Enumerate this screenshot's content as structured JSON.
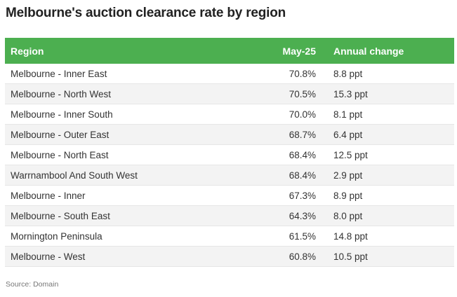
{
  "title": "Melbourne's auction clearance rate by region",
  "source": "Source: Domain",
  "colors": {
    "header_bg": "#4caf50",
    "header_text": "#ffffff",
    "row_alt_bg": "#f3f3f3"
  },
  "chart_data": {
    "type": "table",
    "title": "Melbourne's auction clearance rate by region",
    "columns": [
      "Region",
      "May-25",
      "Annual change"
    ],
    "rows": [
      [
        "Melbourne - Inner East",
        "70.8%",
        "8.8 ppt"
      ],
      [
        "Melbourne - North West",
        "70.5%",
        "15.3 ppt"
      ],
      [
        "Melbourne - Inner South",
        "70.0%",
        "8.1 ppt"
      ],
      [
        "Melbourne - Outer East",
        "68.7%",
        "6.4 ppt"
      ],
      [
        "Melbourne - North East",
        "68.4%",
        "12.5 ppt"
      ],
      [
        "Warrnambool And South West",
        "68.4%",
        "2.9 ppt"
      ],
      [
        "Melbourne - Inner",
        "67.3%",
        "8.9 ppt"
      ],
      [
        "Melbourne - South East",
        "64.3%",
        "8.0 ppt"
      ],
      [
        "Mornington Peninsula",
        "61.5%",
        "14.8 ppt"
      ],
      [
        "Melbourne - West",
        "60.8%",
        "10.5 ppt"
      ]
    ]
  }
}
